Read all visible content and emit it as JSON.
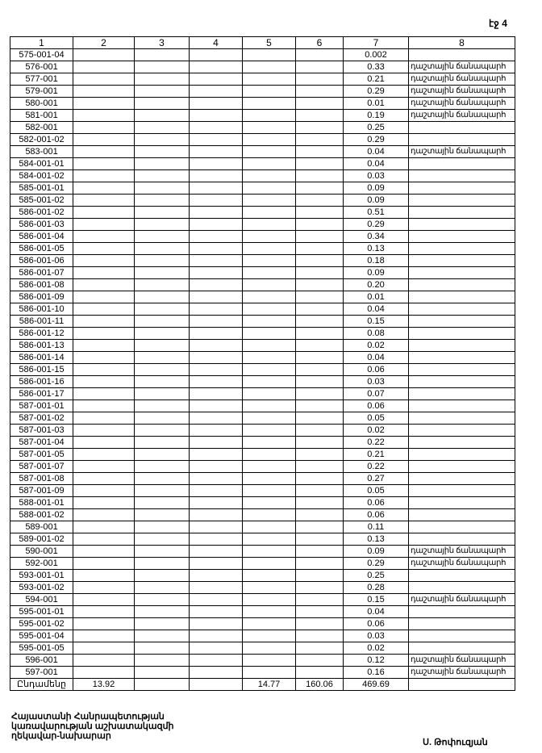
{
  "page_number": "էջ 4",
  "table": {
    "headers": [
      "1",
      "2",
      "3",
      "4",
      "5",
      "6",
      "7",
      "8"
    ],
    "rows": [
      {
        "code": "575-001-04",
        "value": "0.002",
        "note": ""
      },
      {
        "code": "576-001",
        "value": "0.33",
        "note": "դաշտային ճանապարհ"
      },
      {
        "code": "577-001",
        "value": "0.21",
        "note": "դաշտային ճանապարհ"
      },
      {
        "code": "579-001",
        "value": "0.29",
        "note": "դաշտային ճանապարհ"
      },
      {
        "code": "580-001",
        "value": "0.01",
        "note": "դաշտային ճանապարհ"
      },
      {
        "code": "581-001",
        "value": "0.19",
        "note": "դաշտային ճանապարհ"
      },
      {
        "code": "582-001",
        "value": "0.25",
        "note": ""
      },
      {
        "code": "582-001-02",
        "value": "0.29",
        "note": ""
      },
      {
        "code": "583-001",
        "value": "0.04",
        "note": "դաշտային ճանապարհ"
      },
      {
        "code": "584-001-01",
        "value": "0.04",
        "note": ""
      },
      {
        "code": "584-001-02",
        "value": "0.03",
        "note": ""
      },
      {
        "code": "585-001-01",
        "value": "0.09",
        "note": ""
      },
      {
        "code": "585-001-02",
        "value": "0.09",
        "note": ""
      },
      {
        "code": "586-001-02",
        "value": "0.51",
        "note": ""
      },
      {
        "code": "586-001-03",
        "value": "0.29",
        "note": ""
      },
      {
        "code": "586-001-04",
        "value": "0.34",
        "note": ""
      },
      {
        "code": "586-001-05",
        "value": "0.13",
        "note": ""
      },
      {
        "code": "586-001-06",
        "value": "0.18",
        "note": ""
      },
      {
        "code": "586-001-07",
        "value": "0.09",
        "note": ""
      },
      {
        "code": "586-001-08",
        "value": "0.20",
        "note": ""
      },
      {
        "code": "586-001-09",
        "value": "0.01",
        "note": ""
      },
      {
        "code": "586-001-10",
        "value": "0.04",
        "note": ""
      },
      {
        "code": "586-001-11",
        "value": "0.15",
        "note": ""
      },
      {
        "code": "586-001-12",
        "value": "0.08",
        "note": ""
      },
      {
        "code": "586-001-13",
        "value": "0.02",
        "note": ""
      },
      {
        "code": "586-001-14",
        "value": "0.04",
        "note": ""
      },
      {
        "code": "586-001-15",
        "value": "0.06",
        "note": ""
      },
      {
        "code": "586-001-16",
        "value": "0.03",
        "note": ""
      },
      {
        "code": "586-001-17",
        "value": "0.07",
        "note": ""
      },
      {
        "code": "587-001-01",
        "value": "0.06",
        "note": ""
      },
      {
        "code": "587-001-02",
        "value": "0.05",
        "note": ""
      },
      {
        "code": "587-001-03",
        "value": "0.02",
        "note": ""
      },
      {
        "code": "587-001-04",
        "value": "0.22",
        "note": ""
      },
      {
        "code": "587-001-05",
        "value": "0.21",
        "note": ""
      },
      {
        "code": "587-001-07",
        "value": "0.22",
        "note": ""
      },
      {
        "code": "587-001-08",
        "value": "0.27",
        "note": ""
      },
      {
        "code": "587-001-09",
        "value": "0.05",
        "note": ""
      },
      {
        "code": "588-001-01",
        "value": "0.06",
        "note": ""
      },
      {
        "code": "588-001-02",
        "value": "0.06",
        "note": ""
      },
      {
        "code": "589-001",
        "value": "0.11",
        "note": ""
      },
      {
        "code": "589-001-02",
        "value": "0.13",
        "note": ""
      },
      {
        "code": "590-001",
        "value": "0.09",
        "note": "դաշտային ճանապարհ"
      },
      {
        "code": "592-001",
        "value": "0.29",
        "note": "դաշտային ճանապարհ"
      },
      {
        "code": "593-001-01",
        "value": "0.25",
        "note": ""
      },
      {
        "code": "593-001-02",
        "value": "0.28",
        "note": ""
      },
      {
        "code": "594-001",
        "value": "0.15",
        "note": "դաշտային ճանապարհ"
      },
      {
        "code": "595-001-01",
        "value": "0.04",
        "note": ""
      },
      {
        "code": "595-001-02",
        "value": "0.06",
        "note": ""
      },
      {
        "code": "595-001-04",
        "value": "0.03",
        "note": ""
      },
      {
        "code": "595-001-05",
        "value": "0.02",
        "note": ""
      },
      {
        "code": "596-001",
        "value": "0.12",
        "note": "դաշտային ճանապարհ"
      },
      {
        "code": "597-001",
        "value": "0.16",
        "note": "դաշտային ճանապարհ"
      }
    ],
    "total": {
      "label": "Ընդամենը",
      "c2": "13.92",
      "c3": "",
      "c4": "",
      "c5": "14.77",
      "c6": "160.06",
      "c7": "469.69",
      "c8": ""
    }
  },
  "signature": {
    "title_lines": [
      "Հայաստանի Հանրապետության",
      "կառավարության աշխատակազմի",
      "ղեկավար-նախարար"
    ],
    "name": "Ս. Թոփուզյան"
  }
}
